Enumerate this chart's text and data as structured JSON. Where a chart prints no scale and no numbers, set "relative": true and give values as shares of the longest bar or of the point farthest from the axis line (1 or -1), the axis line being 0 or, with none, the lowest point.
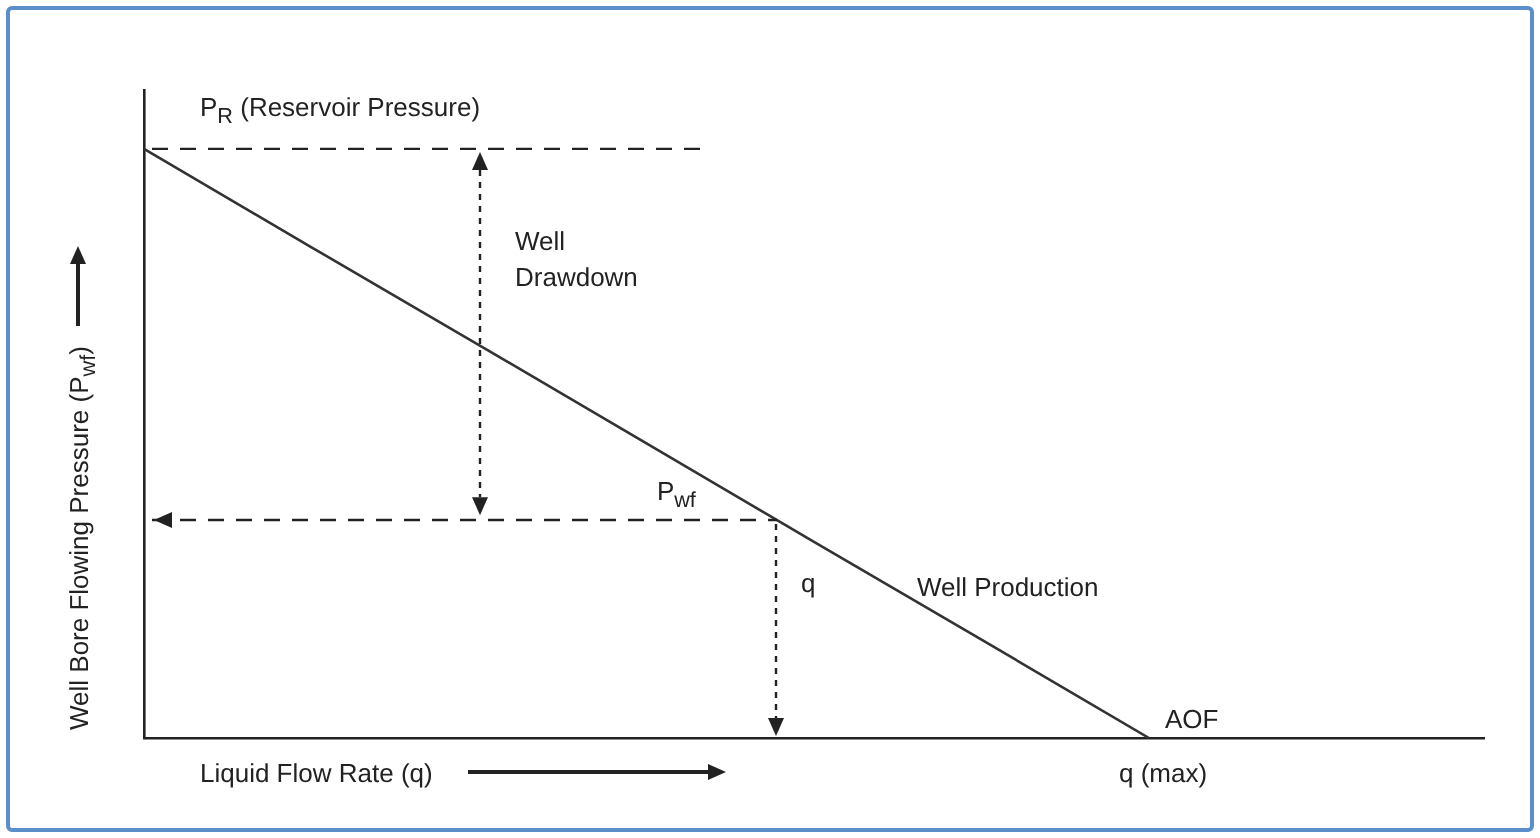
{
  "chart_data": {
    "type": "line",
    "relative": true,
    "xlabel": "Liquid Flow Rate (q)",
    "ylabel": "Well Bore Flowing Pressure (P$_{wf}$)",
    "categories": [
      null,
      null,
      null,
      null,
      null,
      null,
      null,
      null,
      null
    ],
    "series": [
      {
        "color": "#333333",
        "values": [
          1,
          0.833,
          0.667,
          0.5,
          0.333,
          0.167,
          0,
          null,
          null
        ]
      }
    ],
    "ref_lines": [
      {
        "axis": "y",
        "value": 1,
        "label": "P$_{R}$  (Reservoir Pressure)",
        "line_style": "dashed"
      },
      {
        "axis": "y",
        "value": 0.37,
        "label": "P$_{wf}$",
        "line_style": "dashed"
      }
    ],
    "annotations": [
      "Well Drawdown",
      "q",
      "Well Production",
      "AOF",
      "q (max)"
    ],
    "tick_labels": false,
    "grid": false,
    "legend": false
  }
}
